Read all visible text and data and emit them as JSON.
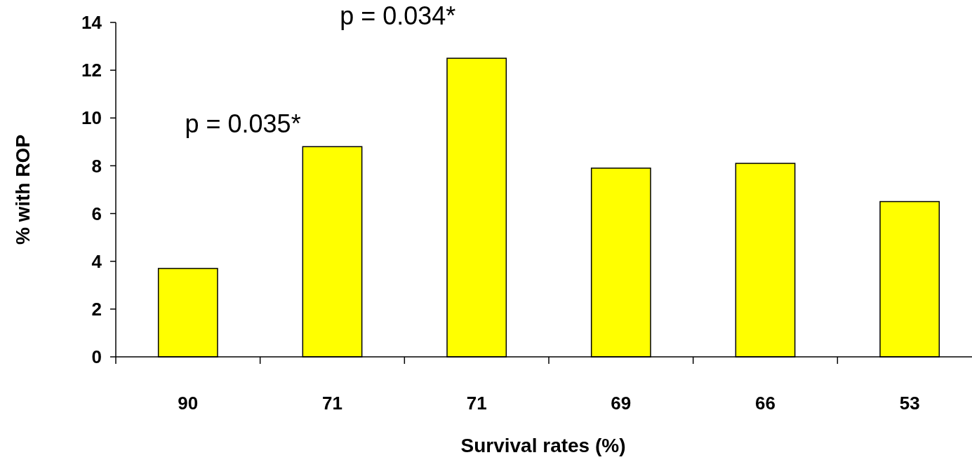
{
  "chart_data": {
    "type": "bar",
    "xlabel": "Survival rates (%)",
    "ylabel": "% with ROP",
    "categories": [
      "90",
      "71",
      "71",
      "69",
      "66",
      "53"
    ],
    "values": [
      3.7,
      8.8,
      12.5,
      7.9,
      8.1,
      6.5
    ],
    "color": "#ffff00",
    "ylim": [
      0,
      14
    ],
    "yticks": [
      0,
      2,
      4,
      6,
      8,
      10,
      12,
      14
    ],
    "grid": false,
    "annotations": [
      "p = 0.035*",
      "p = 0.034*"
    ]
  }
}
